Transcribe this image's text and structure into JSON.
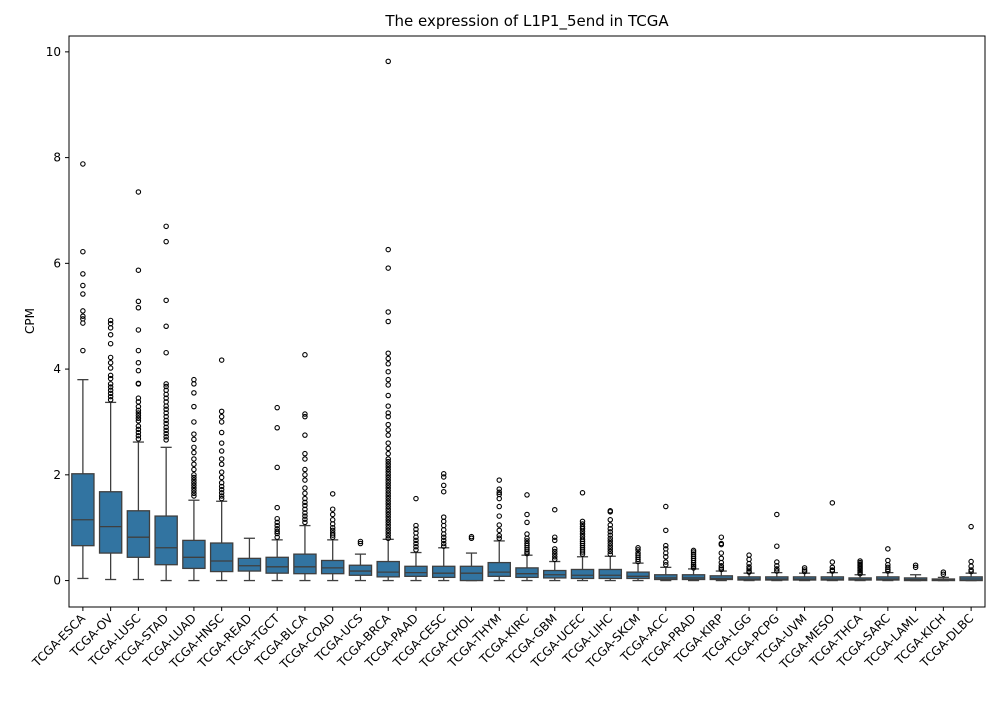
{
  "chart_data": {
    "type": "box",
    "title": "The expression of L1P1_5end in TCGA",
    "xlabel": "",
    "ylabel": "CPM",
    "ylim": [
      -0.5,
      10.3
    ],
    "yticks": [
      0,
      2,
      4,
      6,
      8,
      10
    ],
    "box_color": "#3274a1",
    "edge_color": "#3f3f3f",
    "grid": false,
    "categories": [
      "TCGA-ESCA",
      "TCGA-OV",
      "TCGA-LUSC",
      "TCGA-STAD",
      "TCGA-LUAD",
      "TCGA-HNSC",
      "TCGA-READ",
      "TCGA-TGCT",
      "TCGA-BLCA",
      "TCGA-COAD",
      "TCGA-UCS",
      "TCGA-BRCA",
      "TCGA-PAAD",
      "TCGA-CESC",
      "TCGA-CHOL",
      "TCGA-THYM",
      "TCGA-KIRC",
      "TCGA-GBM",
      "TCGA-UCEC",
      "TCGA-LIHC",
      "TCGA-SKCM",
      "TCGA-ACC",
      "TCGA-PRAD",
      "TCGA-KIRP",
      "TCGA-LGG",
      "TCGA-PCPG",
      "TCGA-UVM",
      "TCGA-MESO",
      "TCGA-THCA",
      "TCGA-SARC",
      "TCGA-LAML",
      "TCGA-KICH",
      "TCGA-DLBC"
    ],
    "boxes": [
      {
        "whislo": 0.04,
        "q1": 0.66,
        "med": 1.15,
        "q3": 2.02,
        "whishi": 3.8,
        "fliers": [
          7.88,
          6.22,
          5.8,
          5.58,
          5.42,
          5.1,
          5.0,
          4.95,
          4.87,
          4.35
        ]
      },
      {
        "whislo": 0.02,
        "q1": 0.52,
        "med": 1.02,
        "q3": 1.68,
        "whishi": 3.37,
        "fliers": [
          4.92,
          4.86,
          4.78,
          4.65,
          4.48,
          4.22,
          4.12,
          4.02,
          3.88,
          3.82,
          3.72,
          3.66,
          3.6,
          3.54,
          3.48,
          3.42
        ]
      },
      {
        "whislo": 0.02,
        "q1": 0.44,
        "med": 0.82,
        "q3": 1.32,
        "whishi": 2.62,
        "fliers": [
          7.35,
          5.87,
          5.28,
          5.16,
          4.74,
          4.35,
          4.12,
          3.97,
          3.73,
          3.72,
          3.45,
          3.38,
          3.29,
          3.22,
          3.17,
          3.12,
          3.07,
          3.02,
          2.92,
          2.86,
          2.8,
          2.74,
          2.68
        ]
      },
      {
        "whislo": 0.0,
        "q1": 0.3,
        "med": 0.62,
        "q3": 1.22,
        "whishi": 2.52,
        "fliers": [
          6.7,
          6.41,
          5.3,
          4.81,
          4.31,
          3.72,
          3.67,
          3.6,
          3.52,
          3.45,
          3.38,
          3.3,
          3.24,
          3.17,
          3.1,
          3.03,
          2.97,
          2.9,
          2.84,
          2.78,
          2.72,
          2.66
        ]
      },
      {
        "whislo": 0.0,
        "q1": 0.23,
        "med": 0.44,
        "q3": 0.76,
        "whishi": 1.52,
        "fliers": [
          3.8,
          3.72,
          3.55,
          3.29,
          3.0,
          2.77,
          2.67,
          2.52,
          2.42,
          2.3,
          2.2,
          2.1,
          2.0,
          1.95,
          1.9,
          1.85,
          1.8,
          1.75,
          1.7,
          1.65,
          1.6
        ]
      },
      {
        "whislo": 0.0,
        "q1": 0.17,
        "med": 0.37,
        "q3": 0.71,
        "whishi": 1.5,
        "fliers": [
          4.17,
          3.2,
          3.1,
          3.0,
          2.8,
          2.6,
          2.45,
          2.3,
          2.2,
          2.05,
          1.95,
          1.85,
          1.78,
          1.72,
          1.66,
          1.6,
          1.55
        ]
      },
      {
        "whislo": 0.0,
        "q1": 0.18,
        "med": 0.28,
        "q3": 0.42,
        "whishi": 0.8,
        "fliers": []
      },
      {
        "whislo": 0.0,
        "q1": 0.14,
        "med": 0.26,
        "q3": 0.44,
        "whishi": 0.77,
        "fliers": [
          3.27,
          2.89,
          2.14,
          1.38,
          1.17,
          1.1,
          1.04,
          0.98,
          0.93,
          0.89,
          0.82
        ]
      },
      {
        "whislo": 0.0,
        "q1": 0.13,
        "med": 0.26,
        "q3": 0.5,
        "whishi": 1.04,
        "fliers": [
          4.27,
          3.15,
          3.1,
          2.75,
          2.4,
          2.3,
          2.1,
          2.0,
          1.9,
          1.75,
          1.65,
          1.55,
          1.48,
          1.42,
          1.35,
          1.28,
          1.22,
          1.16,
          1.1
        ]
      },
      {
        "whislo": 0.0,
        "q1": 0.13,
        "med": 0.24,
        "q3": 0.38,
        "whishi": 0.77,
        "fliers": [
          1.64,
          1.35,
          1.25,
          1.15,
          1.07,
          1.0,
          0.95,
          0.9,
          0.86,
          0.82
        ]
      },
      {
        "whislo": 0.0,
        "q1": 0.1,
        "med": 0.18,
        "q3": 0.29,
        "whishi": 0.5,
        "fliers": [
          0.74,
          0.7
        ]
      },
      {
        "whislo": 0.0,
        "q1": 0.07,
        "med": 0.16,
        "q3": 0.36,
        "whishi": 0.78,
        "fliers": [
          9.82,
          6.26,
          5.91,
          5.08,
          4.9,
          4.3,
          4.2,
          4.1,
          3.95,
          3.8,
          3.7,
          3.5,
          3.3,
          3.17,
          3.1,
          2.95,
          2.85,
          2.75,
          2.6,
          2.5,
          2.4,
          2.3,
          2.25,
          2.2,
          2.15,
          2.1,
          2.05,
          2.0,
          1.95,
          1.9,
          1.85,
          1.8,
          1.75,
          1.7,
          1.65,
          1.6,
          1.55,
          1.5,
          1.45,
          1.4,
          1.35,
          1.3,
          1.25,
          1.2,
          1.15,
          1.1,
          1.05,
          1.0,
          0.95,
          0.9,
          0.85,
          0.8
        ]
      },
      {
        "whislo": 0.0,
        "q1": 0.08,
        "med": 0.15,
        "q3": 0.27,
        "whishi": 0.53,
        "fliers": [
          1.55,
          1.04,
          0.97,
          0.9,
          0.82,
          0.76,
          0.7,
          0.64,
          0.58
        ]
      },
      {
        "whislo": 0.0,
        "q1": 0.06,
        "med": 0.14,
        "q3": 0.27,
        "whishi": 0.62,
        "fliers": [
          2.02,
          1.96,
          1.8,
          1.68,
          1.2,
          1.12,
          1.04,
          0.96,
          0.88,
          0.82,
          0.76,
          0.7,
          0.65
        ]
      },
      {
        "whislo": 0.0,
        "q1": 0.0,
        "med": 0.14,
        "q3": 0.27,
        "whishi": 0.52,
        "fliers": [
          0.83,
          0.8
        ]
      },
      {
        "whislo": 0.0,
        "q1": 0.08,
        "med": 0.16,
        "q3": 0.34,
        "whishi": 0.75,
        "fliers": [
          1.9,
          1.73,
          1.67,
          1.63,
          1.55,
          1.4,
          1.22,
          1.05,
          0.95,
          0.85,
          0.8
        ]
      },
      {
        "whislo": 0.0,
        "q1": 0.06,
        "med": 0.13,
        "q3": 0.24,
        "whishi": 0.48,
        "fliers": [
          1.62,
          1.25,
          1.1,
          0.88,
          0.8,
          0.75,
          0.7,
          0.66,
          0.62,
          0.58,
          0.54,
          0.51
        ]
      },
      {
        "whislo": 0.0,
        "q1": 0.05,
        "med": 0.11,
        "q3": 0.19,
        "whishi": 0.36,
        "fliers": [
          1.34,
          0.82,
          0.76,
          0.6,
          0.55,
          0.5,
          0.45,
          0.4
        ]
      },
      {
        "whislo": 0.0,
        "q1": 0.04,
        "med": 0.1,
        "q3": 0.21,
        "whishi": 0.45,
        "fliers": [
          1.66,
          1.12,
          1.07,
          1.02,
          0.98,
          0.93,
          0.88,
          0.83,
          0.78,
          0.74,
          0.7,
          0.66,
          0.62,
          0.58,
          0.54,
          0.5
        ]
      },
      {
        "whislo": 0.0,
        "q1": 0.04,
        "med": 0.1,
        "q3": 0.21,
        "whishi": 0.46,
        "fliers": [
          1.32,
          1.3,
          1.15,
          1.05,
          0.98,
          0.92,
          0.86,
          0.8,
          0.75,
          0.7,
          0.65,
          0.6,
          0.55,
          0.5
        ]
      },
      {
        "whislo": 0.0,
        "q1": 0.04,
        "med": 0.08,
        "q3": 0.16,
        "whishi": 0.33,
        "fliers": [
          0.62,
          0.58,
          0.52,
          0.48,
          0.44,
          0.4,
          0.36
        ]
      },
      {
        "whislo": 0.0,
        "q1": 0.02,
        "med": 0.05,
        "q3": 0.11,
        "whishi": 0.25,
        "fliers": [
          1.4,
          0.95,
          0.66,
          0.6,
          0.52,
          0.45,
          0.35,
          0.3
        ]
      },
      {
        "whislo": 0.0,
        "q1": 0.02,
        "med": 0.05,
        "q3": 0.11,
        "whishi": 0.22,
        "fliers": [
          0.57,
          0.54,
          0.5,
          0.46,
          0.42,
          0.38,
          0.34,
          0.3,
          0.27,
          0.24
        ]
      },
      {
        "whislo": 0.0,
        "q1": 0.02,
        "med": 0.04,
        "q3": 0.09,
        "whishi": 0.18,
        "fliers": [
          0.82,
          0.7,
          0.68,
          0.52,
          0.42,
          0.34,
          0.28,
          0.24,
          0.21
        ]
      },
      {
        "whislo": 0.0,
        "q1": 0.01,
        "med": 0.03,
        "q3": 0.07,
        "whishi": 0.14,
        "fliers": [
          0.48,
          0.4,
          0.32,
          0.26,
          0.22,
          0.18,
          0.16
        ]
      },
      {
        "whislo": 0.0,
        "q1": 0.01,
        "med": 0.03,
        "q3": 0.07,
        "whishi": 0.15,
        "fliers": [
          1.25,
          0.65,
          0.35,
          0.28,
          0.22,
          0.18
        ]
      },
      {
        "whislo": 0.0,
        "q1": 0.01,
        "med": 0.03,
        "q3": 0.07,
        "whishi": 0.14,
        "fliers": [
          0.24,
          0.2,
          0.17
        ]
      },
      {
        "whislo": 0.0,
        "q1": 0.01,
        "med": 0.03,
        "q3": 0.07,
        "whishi": 0.15,
        "fliers": [
          1.47,
          0.35,
          0.25,
          0.2,
          0.18
        ]
      },
      {
        "whislo": 0.0,
        "q1": 0.01,
        "med": 0.02,
        "q3": 0.05,
        "whishi": 0.11,
        "fliers": [
          0.37,
          0.34,
          0.31,
          0.28,
          0.25,
          0.22,
          0.19,
          0.16,
          0.13
        ]
      },
      {
        "whislo": 0.0,
        "q1": 0.01,
        "med": 0.03,
        "q3": 0.07,
        "whishi": 0.15,
        "fliers": [
          0.6,
          0.38,
          0.3,
          0.25,
          0.21,
          0.18
        ]
      },
      {
        "whislo": 0.0,
        "q1": 0.0,
        "med": 0.02,
        "q3": 0.05,
        "whishi": 0.11,
        "fliers": [
          0.29,
          0.25
        ]
      },
      {
        "whislo": 0.0,
        "q1": 0.0,
        "med": 0.01,
        "q3": 0.03,
        "whishi": 0.06,
        "fliers": [
          0.16,
          0.12
        ]
      },
      {
        "whislo": 0.0,
        "q1": 0.0,
        "med": 0.03,
        "q3": 0.07,
        "whishi": 0.14,
        "fliers": [
          1.02,
          0.36,
          0.27,
          0.2,
          0.17
        ]
      }
    ]
  }
}
